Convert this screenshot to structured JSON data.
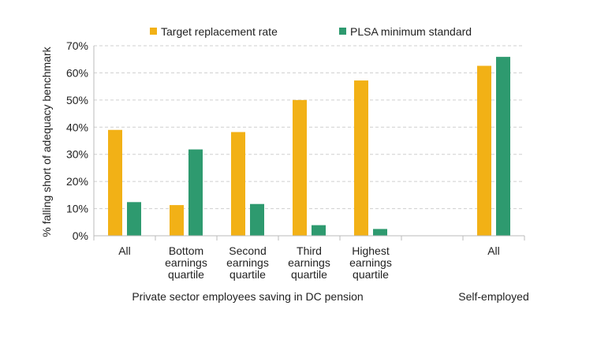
{
  "chart_data": {
    "type": "bar",
    "title": "",
    "ylabel": "% falling short of adequacy benchmark",
    "ylim": [
      0,
      70
    ],
    "yticks": [
      "0%",
      "10%",
      "20%",
      "30%",
      "40%",
      "50%",
      "60%",
      "70%"
    ],
    "grid": true,
    "legend_placement": "top",
    "categories": [
      {
        "label": [
          "All"
        ]
      },
      {
        "label": [
          "Bottom",
          "earnings",
          "quartile"
        ]
      },
      {
        "label": [
          "Second",
          "earnings",
          "quartile"
        ]
      },
      {
        "label": [
          "Third",
          "earnings",
          "quartile"
        ]
      },
      {
        "label": [
          "Highest",
          "earnings",
          "quartile"
        ]
      },
      {
        "label": []
      },
      {
        "label": [
          "All"
        ]
      }
    ],
    "groups": [
      {
        "label": "Private sector employees saving in DC pension"
      },
      {
        "label": "Self-employed"
      }
    ],
    "series": [
      {
        "name": "Target replacement rate",
        "color": "#f2b116",
        "values": [
          39.0,
          11.3,
          38.2,
          50.0,
          57.2,
          null,
          62.6
        ]
      },
      {
        "name": "PLSA minimum standard",
        "color": "#2e9a6f",
        "values": [
          12.4,
          31.8,
          11.7,
          3.9,
          2.5,
          null,
          65.9
        ]
      }
    ]
  }
}
